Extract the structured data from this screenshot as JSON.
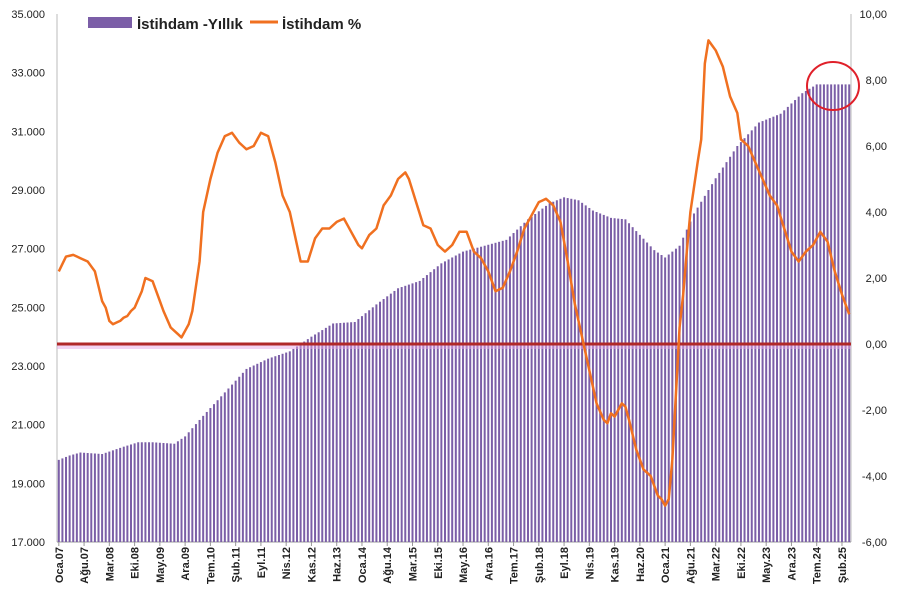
{
  "chart_data": {
    "type": "bar+line",
    "legend": [
      {
        "name": "İstihdam -Yıllık",
        "color": "#7b5ea7",
        "kind": "bar"
      },
      {
        "name": "İstihdam %",
        "color": "#f07020",
        "kind": "line"
      }
    ],
    "legend_position": "top-left",
    "left_axis": {
      "min": 17000,
      "max": 35000,
      "ticks": [
        "17.000",
        "19.000",
        "21.000",
        "23.000",
        "25.000",
        "27.000",
        "29.000",
        "31.000",
        "33.000",
        "35.000"
      ],
      "tick_values": [
        17000,
        19000,
        21000,
        23000,
        25000,
        27000,
        29000,
        31000,
        33000,
        35000
      ]
    },
    "right_axis": {
      "min": -6,
      "max": 10,
      "ticks": [
        "-6,00",
        "-4,00",
        "-2,00",
        "0,00",
        "2,00",
        "4,00",
        "6,00",
        "8,00",
        "10,00"
      ],
      "tick_values": [
        -6,
        -4,
        -2,
        0,
        2,
        4,
        6,
        8,
        10
      ]
    },
    "x_tick_labels": [
      "Oca.07",
      "Ağu.07",
      "Mar.08",
      "Eki.08",
      "May.09",
      "Ara.09",
      "Tem.10",
      "Şub.11",
      "Eyl.11",
      "Nis.12",
      "Kas.12",
      "Haz.13",
      "Oca.14",
      "Ağu.14",
      "Mar.15",
      "Eki.15",
      "May.16",
      "Ara.16",
      "Tem.17",
      "Şub.18",
      "Eyl.18",
      "Nis.19",
      "Kas.19",
      "Haz.20",
      "Oca.21",
      "Ağu.21",
      "Mar.22",
      "Eki.22",
      "May.23",
      "Ara.23",
      "Tem.24",
      "Şub.25"
    ],
    "x_tick_indices": [
      0,
      7,
      14,
      21,
      28,
      35,
      42,
      49,
      56,
      63,
      70,
      77,
      84,
      91,
      98,
      105,
      112,
      119,
      126,
      133,
      140,
      147,
      154,
      161,
      168,
      175,
      182,
      189,
      196,
      203,
      210,
      217
    ],
    "bar_anchors": [
      [
        0,
        19800
      ],
      [
        3,
        19950
      ],
      [
        6,
        20050
      ],
      [
        12,
        20000
      ],
      [
        18,
        20250
      ],
      [
        22,
        20400
      ],
      [
        26,
        20400
      ],
      [
        32,
        20350
      ],
      [
        35,
        20600
      ],
      [
        40,
        21300
      ],
      [
        46,
        22100
      ],
      [
        52,
        22900
      ],
      [
        58,
        23250
      ],
      [
        64,
        23500
      ],
      [
        70,
        24000
      ],
      [
        76,
        24450
      ],
      [
        82,
        24500
      ],
      [
        88,
        25100
      ],
      [
        94,
        25650
      ],
      [
        100,
        25900
      ],
      [
        106,
        26500
      ],
      [
        112,
        26900
      ],
      [
        118,
        27100
      ],
      [
        124,
        27300
      ],
      [
        130,
        28000
      ],
      [
        136,
        28550
      ],
      [
        140,
        28750
      ],
      [
        144,
        28650
      ],
      [
        148,
        28300
      ],
      [
        153,
        28050
      ],
      [
        157,
        28000
      ],
      [
        160,
        27600
      ],
      [
        165,
        26950
      ],
      [
        168,
        26700
      ],
      [
        172,
        27100
      ],
      [
        176,
        28200
      ],
      [
        182,
        29400
      ],
      [
        188,
        30500
      ],
      [
        194,
        31300
      ],
      [
        200,
        31600
      ],
      [
        206,
        32300
      ],
      [
        210,
        32600
      ],
      [
        216,
        32600
      ],
      [
        219,
        32600
      ]
    ],
    "line_anchors": [
      [
        0,
        2.2
      ],
      [
        2,
        2.65
      ],
      [
        4,
        2.7
      ],
      [
        8,
        2.5
      ],
      [
        10,
        2.2
      ],
      [
        12,
        1.3
      ],
      [
        13,
        1.1
      ],
      [
        14,
        0.7
      ],
      [
        15,
        0.6
      ],
      [
        16,
        0.65
      ],
      [
        17,
        0.7
      ],
      [
        18,
        0.8
      ],
      [
        19,
        0.85
      ],
      [
        20,
        1.0
      ],
      [
        21,
        1.1
      ],
      [
        23,
        1.6
      ],
      [
        24,
        2.0
      ],
      [
        26,
        1.9
      ],
      [
        27,
        1.6
      ],
      [
        29,
        1.0
      ],
      [
        31,
        0.5
      ],
      [
        32,
        0.4
      ],
      [
        33,
        0.3
      ],
      [
        34,
        0.2
      ],
      [
        36,
        0.6
      ],
      [
        37,
        1.0
      ],
      [
        39,
        2.5
      ],
      [
        40,
        4.0
      ],
      [
        42,
        5.0
      ],
      [
        44,
        5.8
      ],
      [
        46,
        6.3
      ],
      [
        48,
        6.4
      ],
      [
        50,
        6.1
      ],
      [
        52,
        5.9
      ],
      [
        54,
        6.0
      ],
      [
        56,
        6.4
      ],
      [
        58,
        6.3
      ],
      [
        60,
        5.5
      ],
      [
        62,
        4.5
      ],
      [
        64,
        4.0
      ],
      [
        66,
        3.0
      ],
      [
        67,
        2.5
      ],
      [
        69,
        2.5
      ],
      [
        71,
        3.2
      ],
      [
        73,
        3.5
      ],
      [
        75,
        3.5
      ],
      [
        77,
        3.7
      ],
      [
        79,
        3.8
      ],
      [
        81,
        3.4
      ],
      [
        83,
        3.0
      ],
      [
        84,
        2.9
      ],
      [
        86,
        3.3
      ],
      [
        88,
        3.5
      ],
      [
        90,
        4.2
      ],
      [
        92,
        4.5
      ],
      [
        94,
        5.0
      ],
      [
        96,
        5.2
      ],
      [
        97,
        5.0
      ],
      [
        99,
        4.3
      ],
      [
        101,
        3.6
      ],
      [
        103,
        3.5
      ],
      [
        105,
        3.0
      ],
      [
        107,
        2.8
      ],
      [
        109,
        3.0
      ],
      [
        111,
        3.4
      ],
      [
        113,
        3.4
      ],
      [
        115,
        2.8
      ],
      [
        117,
        2.6
      ],
      [
        119,
        2.2
      ],
      [
        121,
        1.6
      ],
      [
        123,
        1.7
      ],
      [
        125,
        2.2
      ],
      [
        127,
        2.8
      ],
      [
        129,
        3.5
      ],
      [
        131,
        3.9
      ],
      [
        133,
        4.3
      ],
      [
        135,
        4.4
      ],
      [
        137,
        4.2
      ],
      [
        139,
        3.7
      ],
      [
        141,
        2.5
      ],
      [
        143,
        1.2
      ],
      [
        145,
        0.2
      ],
      [
        147,
        -0.8
      ],
      [
        149,
        -1.8
      ],
      [
        151,
        -2.3
      ],
      [
        152,
        -2.4
      ],
      [
        153,
        -2.1
      ],
      [
        154,
        -2.2
      ],
      [
        156,
        -1.8
      ],
      [
        157,
        -1.9
      ],
      [
        158,
        -2.3
      ],
      [
        160,
        -3.2
      ],
      [
        162,
        -3.8
      ],
      [
        164,
        -4.0
      ],
      [
        166,
        -4.6
      ],
      [
        167,
        -4.7
      ],
      [
        168,
        -4.9
      ],
      [
        169,
        -4.7
      ],
      [
        170,
        -3.5
      ],
      [
        171,
        -1.5
      ],
      [
        172,
        0.5
      ],
      [
        173,
        1.5
      ],
      [
        174,
        2.8
      ],
      [
        175,
        4.0
      ],
      [
        177,
        5.5
      ],
      [
        178,
        6.2
      ],
      [
        179,
        8.5
      ],
      [
        180,
        9.2
      ],
      [
        182,
        8.9
      ],
      [
        184,
        8.4
      ],
      [
        186,
        7.5
      ],
      [
        188,
        7.0
      ],
      [
        189,
        6.2
      ],
      [
        191,
        6.0
      ],
      [
        193,
        5.5
      ],
      [
        195,
        5.0
      ],
      [
        197,
        4.5
      ],
      [
        199,
        4.2
      ],
      [
        201,
        3.5
      ],
      [
        203,
        2.8
      ],
      [
        205,
        2.5
      ],
      [
        207,
        2.8
      ],
      [
        209,
        3.0
      ],
      [
        211,
        3.4
      ],
      [
        213,
        3.1
      ],
      [
        215,
        2.2
      ],
      [
        217,
        1.5
      ],
      [
        219,
        0.9
      ]
    ]
  }
}
